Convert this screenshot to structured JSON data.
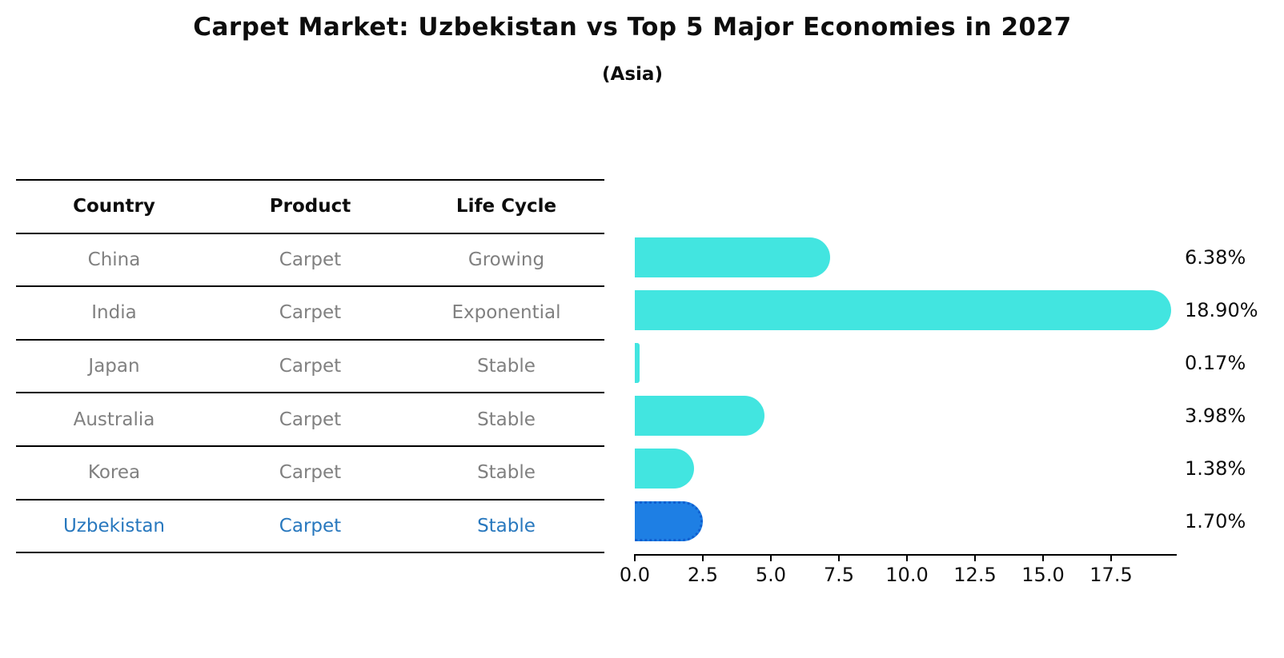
{
  "title": "Carpet Market: Uzbekistan vs Top 5 Major Economies in 2027",
  "subtitle": "(Asia)",
  "table": {
    "headers": [
      "Country",
      "Product",
      "Life Cycle"
    ],
    "rows": [
      {
        "country": "China",
        "product": "Carpet",
        "life_cycle": "Growing",
        "highlight": false
      },
      {
        "country": "India",
        "product": "Carpet",
        "life_cycle": "Exponential",
        "highlight": false
      },
      {
        "country": "Japan",
        "product": "Carpet",
        "life_cycle": "Stable",
        "highlight": false
      },
      {
        "country": "Australia",
        "product": "Carpet",
        "life_cycle": "Stable",
        "highlight": false
      },
      {
        "country": "Korea",
        "product": "Carpet",
        "life_cycle": "Stable",
        "highlight": false
      },
      {
        "country": "Uzbekistan",
        "product": "Carpet",
        "life_cycle": "Stable",
        "highlight": true
      }
    ]
  },
  "chart_data": {
    "type": "bar",
    "orientation": "horizontal",
    "title": "Carpet Market: Uzbekistan vs Top 5 Major Economies in 2027",
    "subtitle": "(Asia)",
    "categories": [
      "China",
      "India",
      "Japan",
      "Australia",
      "Korea",
      "Uzbekistan"
    ],
    "values": [
      6.38,
      18.9,
      0.17,
      3.98,
      1.38,
      1.7
    ],
    "value_labels": [
      "6.38%",
      "18.90%",
      "0.17%",
      "3.98%",
      "1.38%",
      "1.70%"
    ],
    "highlight_index": 5,
    "x_ticks": [
      0.0,
      2.5,
      5.0,
      7.5,
      10.0,
      12.5,
      15.0,
      17.5
    ],
    "x_tick_labels": [
      "0.0",
      "2.5",
      "5.0",
      "7.5",
      "10.0",
      "12.5",
      "15.0",
      "17.5"
    ],
    "xlim": [
      0,
      19.9
    ],
    "grid": false,
    "legend": false,
    "bar_color": "#42e5e0",
    "highlight_bar_color": "#1e7fe4",
    "highlight_border_color": "#0f5fd0",
    "label_color": "#0d0d0d",
    "table_text_color": "#808080",
    "highlight_text_color": "#2878be"
  }
}
